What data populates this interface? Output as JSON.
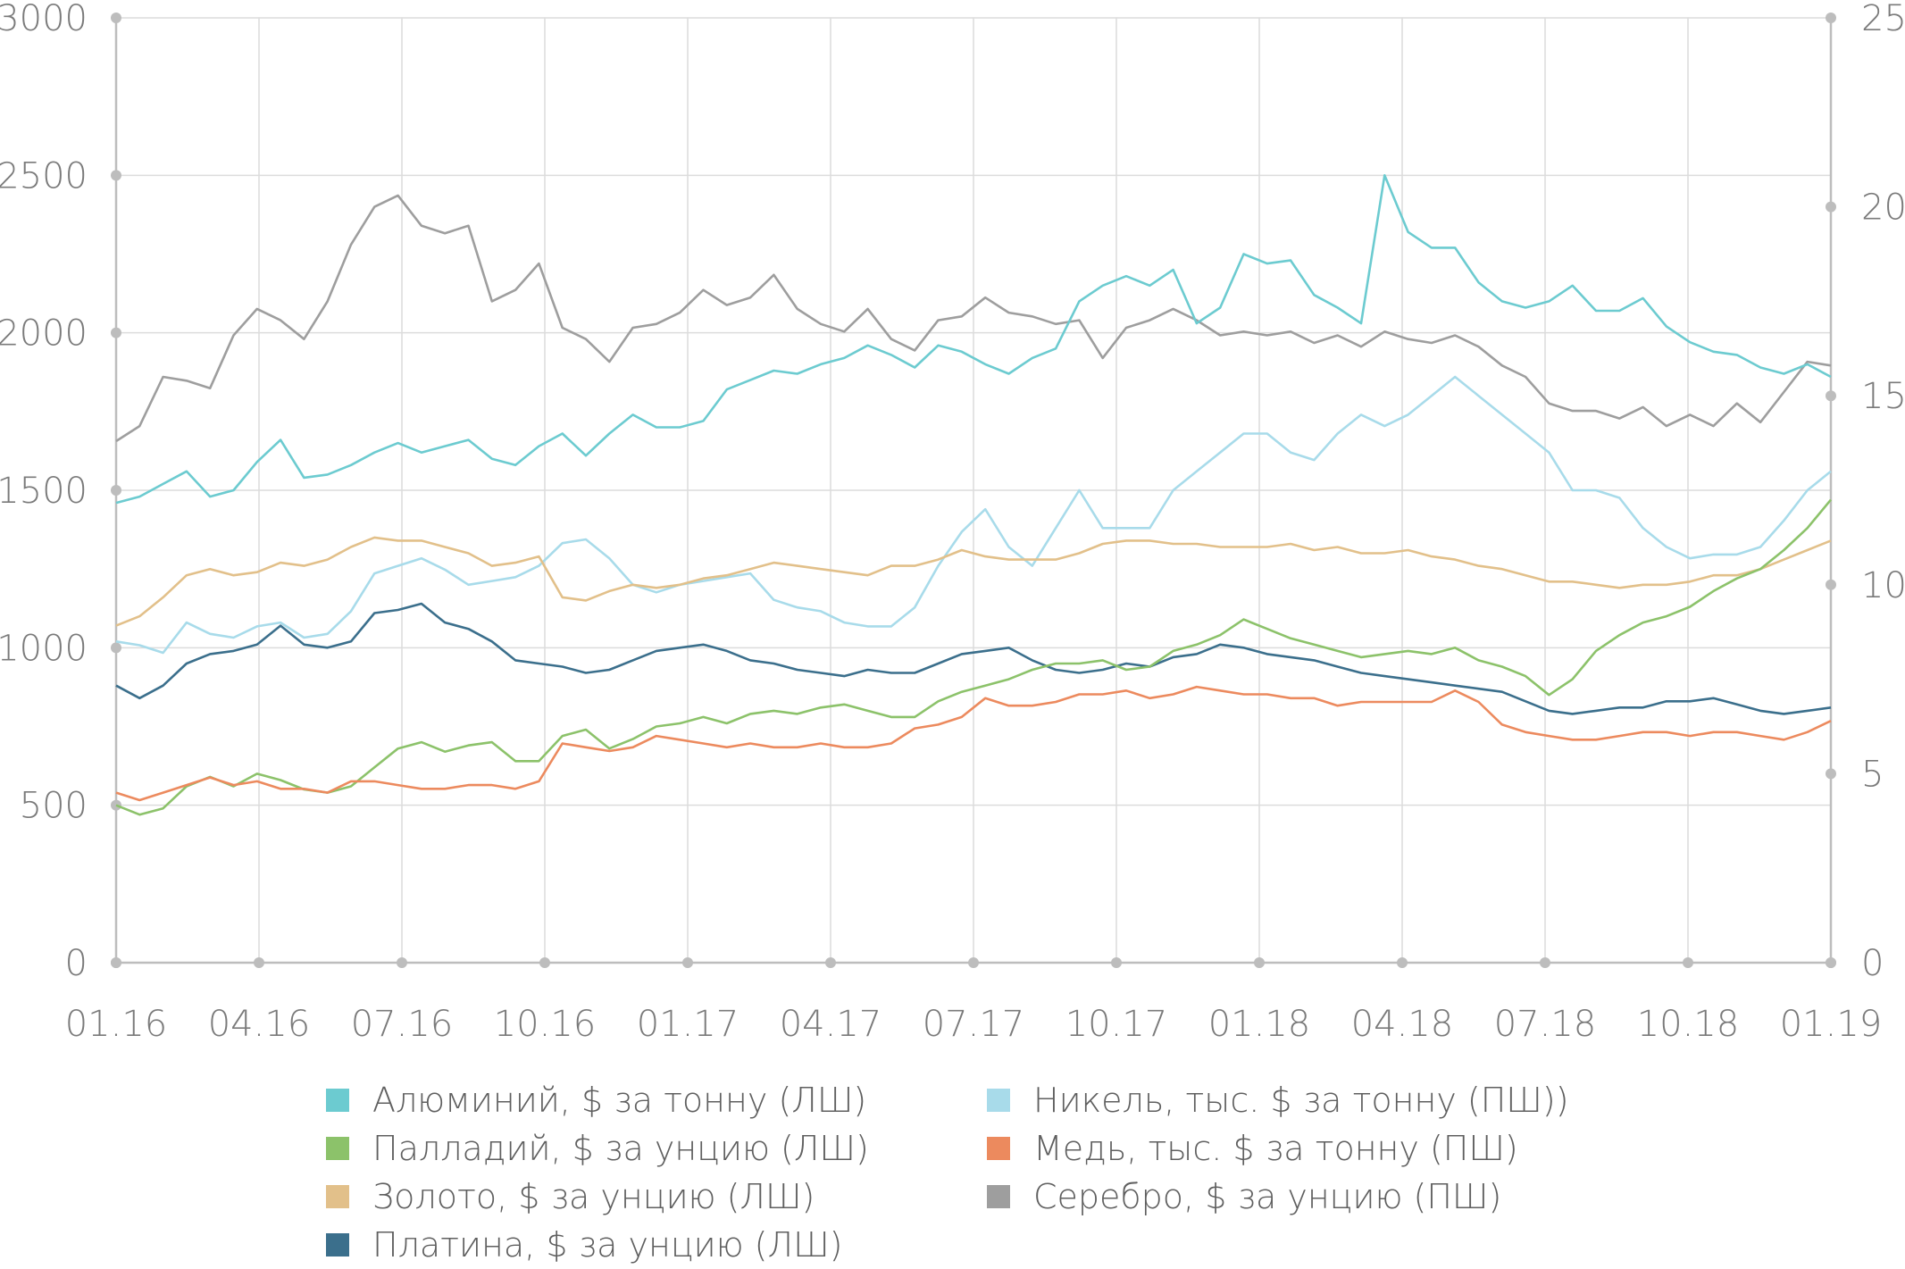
{
  "chart_data": {
    "type": "line",
    "title": "",
    "x_ticks": [
      "01.16",
      "04.16",
      "07.16",
      "10.16",
      "01.17",
      "04.17",
      "07.17",
      "10.17",
      "01.18",
      "04.18",
      "07.18",
      "10.18",
      "01.19"
    ],
    "left_axis": {
      "ylim": [
        0,
        3000
      ],
      "ticks": [
        "0",
        "500",
        "1000",
        "1500",
        "2000",
        "2500",
        "3000"
      ]
    },
    "right_axis": {
      "ylim": [
        0,
        25
      ],
      "ticks": [
        "0",
        "5",
        "10",
        "15",
        "20",
        "25"
      ]
    },
    "grid": true,
    "legend_position": "bottom",
    "series": [
      {
        "name": "Алюминий, $ за тонну (ЛШ)",
        "axis": "left",
        "color": "#6ccbd0",
        "values": [
          1460,
          1480,
          1520,
          1560,
          1480,
          1500,
          1590,
          1660,
          1540,
          1550,
          1580,
          1620,
          1650,
          1620,
          1640,
          1660,
          1600,
          1580,
          1640,
          1680,
          1610,
          1680,
          1740,
          1700,
          1700,
          1720,
          1820,
          1850,
          1880,
          1870,
          1900,
          1920,
          1960,
          1930,
          1890,
          1960,
          1940,
          1900,
          1870,
          1920,
          1950,
          2100,
          2150,
          2180,
          2150,
          2200,
          2030,
          2080,
          2250,
          2220,
          2230,
          2120,
          2080,
          2030,
          2500,
          2320,
          2270,
          2270,
          2160,
          2100,
          2080,
          2100,
          2150,
          2070,
          2070,
          2110,
          2020,
          1970,
          1940,
          1930,
          1890,
          1870,
          1900,
          1860
        ]
      },
      {
        "name": "Палладий, $ за унцию (ЛШ)",
        "axis": "left",
        "color": "#8cc26a",
        "values": [
          500,
          470,
          490,
          560,
          590,
          560,
          600,
          580,
          550,
          540,
          560,
          620,
          680,
          700,
          670,
          690,
          700,
          640,
          640,
          720,
          740,
          680,
          710,
          750,
          760,
          780,
          760,
          790,
          800,
          790,
          810,
          820,
          800,
          780,
          780,
          830,
          860,
          880,
          900,
          930,
          950,
          950,
          960,
          930,
          940,
          990,
          1010,
          1040,
          1090,
          1060,
          1030,
          1010,
          990,
          970,
          980,
          990,
          980,
          1000,
          960,
          940,
          910,
          850,
          900,
          990,
          1040,
          1080,
          1100,
          1130,
          1180,
          1220,
          1250,
          1310,
          1380,
          1470
        ]
      },
      {
        "name": "Золото, $ за унцию (ЛШ)",
        "axis": "left",
        "color": "#e2c08a",
        "values": [
          1070,
          1100,
          1160,
          1230,
          1250,
          1230,
          1240,
          1270,
          1260,
          1280,
          1320,
          1350,
          1340,
          1340,
          1320,
          1300,
          1260,
          1270,
          1290,
          1160,
          1150,
          1180,
          1200,
          1190,
          1200,
          1220,
          1230,
          1250,
          1270,
          1260,
          1250,
          1240,
          1230,
          1260,
          1260,
          1280,
          1310,
          1290,
          1280,
          1280,
          1280,
          1300,
          1330,
          1340,
          1340,
          1330,
          1330,
          1320,
          1320,
          1320,
          1330,
          1310,
          1320,
          1300,
          1300,
          1310,
          1290,
          1280,
          1260,
          1250,
          1230,
          1210,
          1210,
          1200,
          1190,
          1200,
          1200,
          1210,
          1230,
          1230,
          1250,
          1280,
          1310,
          1340
        ]
      },
      {
        "name": "Платина, $ за унцию (ЛШ)",
        "axis": "left",
        "color": "#3b6f8c",
        "values": [
          880,
          840,
          880,
          950,
          980,
          990,
          1010,
          1070,
          1010,
          1000,
          1020,
          1110,
          1120,
          1140,
          1080,
          1060,
          1020,
          960,
          950,
          940,
          920,
          930,
          960,
          990,
          1000,
          1010,
          990,
          960,
          950,
          930,
          920,
          910,
          930,
          920,
          920,
          950,
          980,
          990,
          1000,
          960,
          930,
          920,
          930,
          950,
          940,
          970,
          980,
          1010,
          1000,
          980,
          970,
          960,
          940,
          920,
          910,
          900,
          890,
          880,
          870,
          860,
          830,
          800,
          790,
          800,
          810,
          810,
          830,
          830,
          840,
          820,
          800,
          790,
          800,
          810
        ]
      },
      {
        "name": "Никель, тыс. $ за тонну (ПШ))",
        "axis": "right",
        "color": "#a8dbea",
        "values": [
          8.5,
          8.4,
          8.2,
          9.0,
          8.7,
          8.6,
          8.9,
          9.0,
          8.6,
          8.7,
          9.3,
          10.3,
          10.5,
          10.7,
          10.4,
          10.0,
          10.1,
          10.2,
          10.5,
          11.1,
          11.2,
          10.7,
          10.0,
          9.8,
          10.0,
          10.1,
          10.2,
          10.3,
          9.6,
          9.4,
          9.3,
          9.0,
          8.9,
          8.9,
          9.4,
          10.5,
          11.4,
          12.0,
          11.0,
          10.5,
          11.5,
          12.5,
          11.5,
          11.5,
          11.5,
          12.5,
          13.0,
          13.5,
          14.0,
          14.0,
          13.5,
          13.3,
          14.0,
          14.5,
          14.2,
          14.5,
          15.0,
          15.5,
          15.0,
          14.5,
          14.0,
          13.5,
          12.5,
          12.5,
          12.3,
          11.5,
          11.0,
          10.7,
          10.8,
          10.8,
          11.0,
          11.7,
          12.5,
          13.0
        ]
      },
      {
        "name": "Медь, тыс. $ за тонну (ПШ)",
        "axis": "right",
        "color": "#ec8a5e",
        "values": [
          4.5,
          4.3,
          4.5,
          4.7,
          4.9,
          4.7,
          4.8,
          4.6,
          4.6,
          4.5,
          4.8,
          4.8,
          4.7,
          4.6,
          4.6,
          4.7,
          4.7,
          4.6,
          4.8,
          5.8,
          5.7,
          5.6,
          5.7,
          6.0,
          5.9,
          5.8,
          5.7,
          5.8,
          5.7,
          5.7,
          5.8,
          5.7,
          5.7,
          5.8,
          6.2,
          6.3,
          6.5,
          7.0,
          6.8,
          6.8,
          6.9,
          7.1,
          7.1,
          7.2,
          7.0,
          7.1,
          7.3,
          7.2,
          7.1,
          7.1,
          7.0,
          7.0,
          6.8,
          6.9,
          6.9,
          6.9,
          6.9,
          7.2,
          6.9,
          6.3,
          6.1,
          6.0,
          5.9,
          5.9,
          6.0,
          6.1,
          6.1,
          6.0,
          6.1,
          6.1,
          6.0,
          5.9,
          6.1,
          6.4
        ]
      },
      {
        "name": "Серебро, $ за унцию (ПШ)",
        "axis": "right",
        "color": "#9e9e9e",
        "values": [
          13.8,
          14.2,
          15.5,
          15.4,
          15.2,
          16.6,
          17.3,
          17.0,
          16.5,
          17.5,
          19.0,
          20.0,
          20.3,
          19.5,
          19.3,
          19.5,
          17.5,
          17.8,
          18.5,
          16.8,
          16.5,
          15.9,
          16.8,
          16.9,
          17.2,
          17.8,
          17.4,
          17.6,
          18.2,
          17.3,
          16.9,
          16.7,
          17.3,
          16.5,
          16.2,
          17.0,
          17.1,
          17.6,
          17.2,
          17.1,
          16.9,
          17.0,
          16.0,
          16.8,
          17.0,
          17.3,
          17.0,
          16.6,
          16.7,
          16.6,
          16.7,
          16.4,
          16.6,
          16.3,
          16.7,
          16.5,
          16.4,
          16.6,
          16.3,
          15.8,
          15.5,
          14.8,
          14.6,
          14.6,
          14.4,
          14.7,
          14.2,
          14.5,
          14.2,
          14.8,
          14.3,
          15.1,
          15.9,
          15.8
        ]
      }
    ]
  }
}
